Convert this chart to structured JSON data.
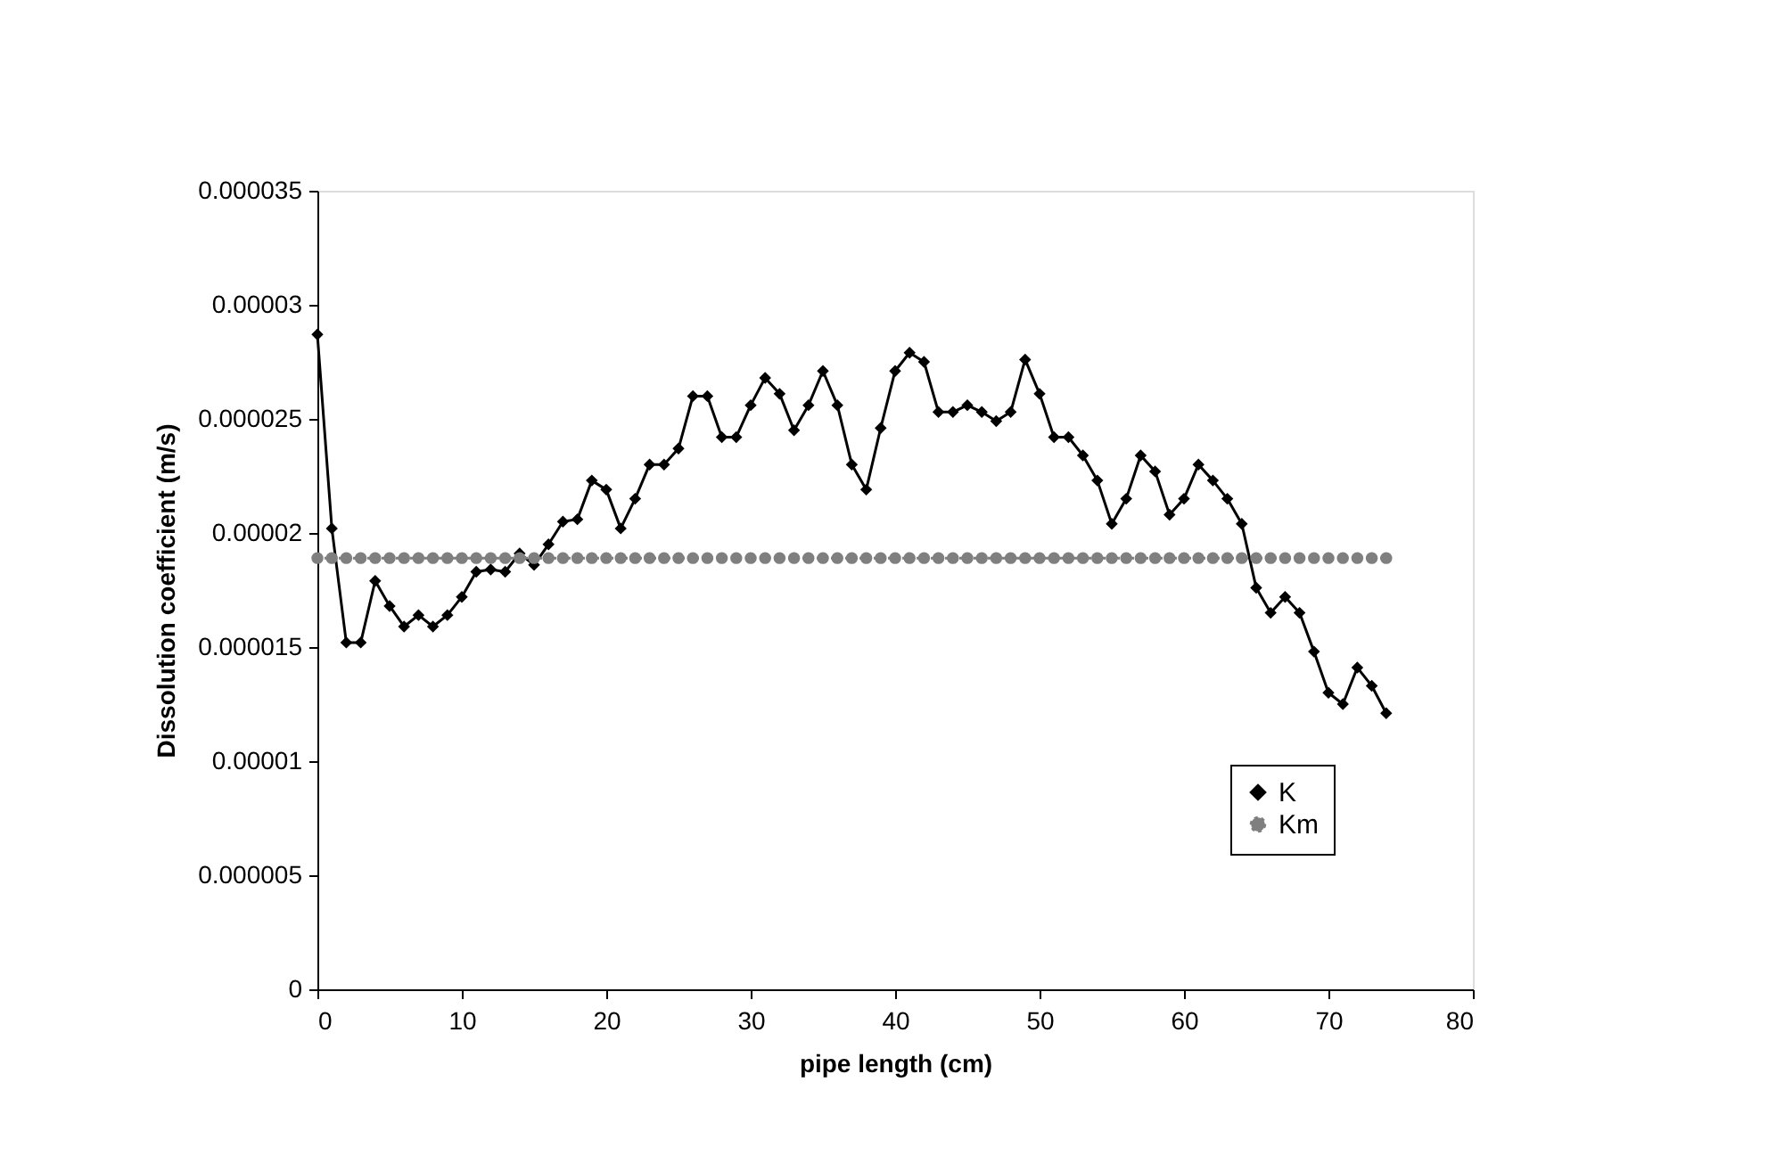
{
  "chart_data": {
    "type": "line",
    "xlabel": "pipe length (cm)",
    "ylabel": "Dissolution coefficient (m/s)",
    "x": [
      0,
      1,
      2,
      3,
      4,
      5,
      6,
      7,
      8,
      9,
      10,
      11,
      12,
      13,
      14,
      15,
      16,
      17,
      18,
      19,
      20,
      21,
      22,
      23,
      24,
      25,
      26,
      27,
      28,
      29,
      30,
      31,
      32,
      33,
      34,
      35,
      36,
      37,
      38,
      39,
      40,
      41,
      42,
      43,
      44,
      45,
      46,
      47,
      48,
      49,
      50,
      51,
      52,
      53,
      54,
      55,
      56,
      57,
      58,
      59,
      60,
      61,
      62,
      63,
      64,
      65,
      66,
      67,
      68,
      69,
      70,
      71,
      72,
      73,
      74
    ],
    "series": [
      {
        "name": "K",
        "color": "#000000",
        "marker": "diamond",
        "line_style": "solid",
        "values": [
          2.87e-05,
          2.02e-05,
          1.52e-05,
          1.52e-05,
          1.79e-05,
          1.68e-05,
          1.59e-05,
          1.64e-05,
          1.59e-05,
          1.64e-05,
          1.72e-05,
          1.83e-05,
          1.84e-05,
          1.83e-05,
          1.91e-05,
          1.86e-05,
          1.95e-05,
          2.05e-05,
          2.06e-05,
          2.23e-05,
          2.19e-05,
          2.02e-05,
          2.15e-05,
          2.3e-05,
          2.3e-05,
          2.37e-05,
          2.6e-05,
          2.6e-05,
          2.42e-05,
          2.42e-05,
          2.56e-05,
          2.68e-05,
          2.61e-05,
          2.45e-05,
          2.56e-05,
          2.71e-05,
          2.56e-05,
          2.3e-05,
          2.19e-05,
          2.46e-05,
          2.71e-05,
          2.79e-05,
          2.75e-05,
          2.53e-05,
          2.53e-05,
          2.56e-05,
          2.53e-05,
          2.49e-05,
          2.53e-05,
          2.76e-05,
          2.61e-05,
          2.42e-05,
          2.42e-05,
          2.34e-05,
          2.23e-05,
          2.04e-05,
          2.15e-05,
          2.34e-05,
          2.27e-05,
          2.08e-05,
          2.15e-05,
          2.3e-05,
          2.23e-05,
          2.15e-05,
          2.04e-05,
          1.76e-05,
          1.65e-05,
          1.72e-05,
          1.65e-05,
          1.48e-05,
          1.3e-05,
          1.25e-05,
          1.41e-05,
          1.33e-05,
          1.21e-05
        ]
      },
      {
        "name": "Km",
        "color": "#7f7f7f",
        "marker": "circle",
        "line_style": "dotted",
        "values": [
          1.89e-05,
          1.89e-05,
          1.89e-05,
          1.89e-05,
          1.89e-05,
          1.89e-05,
          1.89e-05,
          1.89e-05,
          1.89e-05,
          1.89e-05,
          1.89e-05,
          1.89e-05,
          1.89e-05,
          1.89e-05,
          1.89e-05,
          1.89e-05,
          1.89e-05,
          1.89e-05,
          1.89e-05,
          1.89e-05,
          1.89e-05,
          1.89e-05,
          1.89e-05,
          1.89e-05,
          1.89e-05,
          1.89e-05,
          1.89e-05,
          1.89e-05,
          1.89e-05,
          1.89e-05,
          1.89e-05,
          1.89e-05,
          1.89e-05,
          1.89e-05,
          1.89e-05,
          1.89e-05,
          1.89e-05,
          1.89e-05,
          1.89e-05,
          1.89e-05,
          1.89e-05,
          1.89e-05,
          1.89e-05,
          1.89e-05,
          1.89e-05,
          1.89e-05,
          1.89e-05,
          1.89e-05,
          1.89e-05,
          1.89e-05,
          1.89e-05,
          1.89e-05,
          1.89e-05,
          1.89e-05,
          1.89e-05,
          1.89e-05,
          1.89e-05,
          1.89e-05,
          1.89e-05,
          1.89e-05,
          1.89e-05,
          1.89e-05,
          1.89e-05,
          1.89e-05,
          1.89e-05,
          1.89e-05,
          1.89e-05,
          1.89e-05,
          1.89e-05,
          1.89e-05,
          1.89e-05,
          1.89e-05,
          1.89e-05,
          1.89e-05,
          1.89e-05
        ]
      }
    ],
    "xlim": [
      0,
      80
    ],
    "xticks": [
      0,
      10,
      20,
      30,
      40,
      50,
      60,
      70,
      80
    ],
    "ylim": [
      0,
      3.5e-05
    ],
    "yticks": [
      {
        "value": 0,
        "label": "0"
      },
      {
        "value": 5e-06,
        "label": "0.000005"
      },
      {
        "value": 1e-05,
        "label": "0.00001"
      },
      {
        "value": 1.5e-05,
        "label": "0.000015"
      },
      {
        "value": 2e-05,
        "label": "0.00002"
      },
      {
        "value": 2.5e-05,
        "label": "0.000025"
      },
      {
        "value": 3e-05,
        "label": "0.00003"
      },
      {
        "value": 3.5e-05,
        "label": "0.000035"
      }
    ],
    "grid": false,
    "legend": "bottom right"
  }
}
